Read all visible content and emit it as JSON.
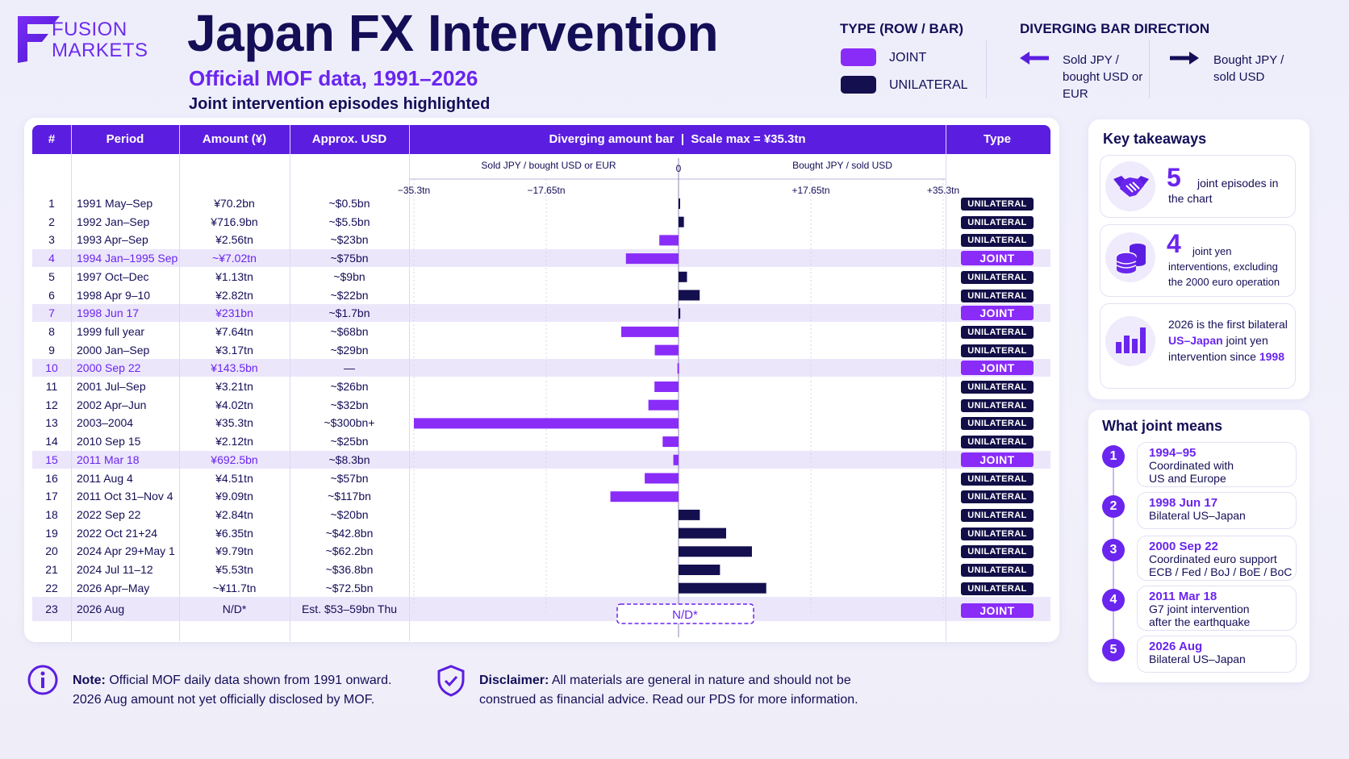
{
  "brand": {
    "line1": "FUSION",
    "line2": "MARKETS"
  },
  "title": "Japan FX Intervention",
  "subtitle": "Official MOF data, 1991–2026",
  "subnote": "Joint intervention episodes highlighted",
  "legend_type": {
    "title": "TYPE (ROW / BAR)",
    "joint": "JOINT",
    "unilateral": "UNILATERAL"
  },
  "legend_direction": {
    "title": "DIVERGING BAR DIRECTION",
    "sold": "Sold JPY / bought USD or EUR",
    "bought": "Bought JPY / sold USD"
  },
  "colors": {
    "joint": "#8a2cf8",
    "unilateral": "#140f4e",
    "accent": "#6a25ee",
    "header": "#5b1ee0"
  },
  "table": {
    "headers": {
      "num": "#",
      "period": "Period",
      "amount": "Amount (¥)",
      "usd": "Approx. USD",
      "bar": "Diverging amount bar  |  Scale max = ¥35.3tn",
      "type": "Type"
    },
    "axis_left_label": "Sold JPY / bought USD or EUR",
    "axis_right_label": "Bought JPY / sold USD",
    "axis_zero": "0",
    "ticks": [
      "−35.3tn",
      "−17.65tn",
      "+17.65tn",
      "+35.3tn"
    ],
    "nd_box": "N/D*"
  },
  "chart_data": {
    "type": "bar",
    "orientation": "horizontal-diverging",
    "title": "Diverging amount bar",
    "scale_note": "Scale max = ¥35.3tn",
    "xlim": [
      -35.3,
      35.3
    ],
    "x_unit": "¥ trillion",
    "rows": [
      {
        "n": "1",
        "period": "1991 May–Sep",
        "amount": "¥70.2bn",
        "usd": "~$0.5bn",
        "type": "UNILATERAL",
        "value": 0.0702
      },
      {
        "n": "2",
        "period": "1992 Jan–Sep",
        "amount": "¥716.9bn",
        "usd": "~$5.5bn",
        "type": "UNILATERAL",
        "value": 0.7169
      },
      {
        "n": "3",
        "period": "1993 Apr–Sep",
        "amount": "¥2.56tn",
        "usd": "~$23bn",
        "type": "UNILATERAL",
        "value": -2.56
      },
      {
        "n": "4",
        "period": "1994 Jan–1995 Sep",
        "amount": "~¥7.02tn",
        "usd": "~$75bn",
        "type": "JOINT",
        "value": -7.02
      },
      {
        "n": "5",
        "period": "1997 Oct–Dec",
        "amount": "¥1.13tn",
        "usd": "~$9bn",
        "type": "UNILATERAL",
        "value": 1.13
      },
      {
        "n": "6",
        "period": "1998 Apr 9–10",
        "amount": "¥2.82tn",
        "usd": "~$22bn",
        "type": "UNILATERAL",
        "value": 2.82
      },
      {
        "n": "7",
        "period": "1998 Jun 17",
        "amount": "¥231bn",
        "usd": "~$1.7bn",
        "type": "JOINT",
        "value": 0.231
      },
      {
        "n": "8",
        "period": "1999 full year",
        "amount": "¥7.64tn",
        "usd": "~$68bn",
        "type": "UNILATERAL",
        "value": -7.64
      },
      {
        "n": "9",
        "period": "2000 Jan–Sep",
        "amount": "¥3.17tn",
        "usd": "~$29bn",
        "type": "UNILATERAL",
        "value": -3.17
      },
      {
        "n": "10",
        "period": "2000 Sep 22",
        "amount": "¥143.5bn",
        "usd": "—",
        "type": "JOINT",
        "value": -0.1435
      },
      {
        "n": "11",
        "period": "2001 Jul–Sep",
        "amount": "¥3.21tn",
        "usd": "~$26bn",
        "type": "UNILATERAL",
        "value": -3.21
      },
      {
        "n": "12",
        "period": "2002 Apr–Jun",
        "amount": "¥4.02tn",
        "usd": "~$32bn",
        "type": "UNILATERAL",
        "value": -4.02
      },
      {
        "n": "13",
        "period": "2003–2004",
        "amount": "¥35.3tn",
        "usd": "~$300bn+",
        "type": "UNILATERAL",
        "value": -35.3
      },
      {
        "n": "14",
        "period": "2010 Sep 15",
        "amount": "¥2.12tn",
        "usd": "~$25bn",
        "type": "UNILATERAL",
        "value": -2.12
      },
      {
        "n": "15",
        "period": "2011 Mar 18",
        "amount": "¥692.5bn",
        "usd": "~$8.3bn",
        "type": "JOINT",
        "value": -0.6925
      },
      {
        "n": "16",
        "period": "2011 Aug 4",
        "amount": "¥4.51tn",
        "usd": "~$57bn",
        "type": "UNILATERAL",
        "value": -4.51
      },
      {
        "n": "17",
        "period": "2011 Oct 31–Nov 4",
        "amount": "¥9.09tn",
        "usd": "~$117bn",
        "type": "UNILATERAL",
        "value": -9.09
      },
      {
        "n": "18",
        "period": "2022 Sep 22",
        "amount": "¥2.84tn",
        "usd": "~$20bn",
        "type": "UNILATERAL",
        "value": 2.84
      },
      {
        "n": "19",
        "period": "2022 Oct 21+24",
        "amount": "¥6.35tn",
        "usd": "~$42.8bn",
        "type": "UNILATERAL",
        "value": 6.35
      },
      {
        "n": "20",
        "period": "2024 Apr 29+May 1",
        "amount": "¥9.79tn",
        "usd": "~$62.2bn",
        "type": "UNILATERAL",
        "value": 9.79
      },
      {
        "n": "21",
        "period": "2024 Jul 11–12",
        "amount": "¥5.53tn",
        "usd": "~$36.8bn",
        "type": "UNILATERAL",
        "value": 5.53
      },
      {
        "n": "22",
        "period": "2026 Apr–May",
        "amount": "~¥11.7tn",
        "usd": "~$72.5bn",
        "type": "UNILATERAL",
        "value": 11.7
      },
      {
        "n": "23",
        "period": "2026 Aug",
        "amount": "N/D*",
        "usd": "Est. $53–59bn Thu",
        "type": "JOINT",
        "value": null
      }
    ]
  },
  "takeaways": {
    "title": "Key takeaways",
    "items": [
      {
        "num": "5",
        "text": "joint episodes in the chart",
        "icon": "handshake-icon"
      },
      {
        "num": "4",
        "text": "joint yen interventions, excluding the 2000 euro operation",
        "icon": "coins-icon"
      },
      {
        "pre": "2026 is the first bilateral ",
        "hl1": "US–Japan",
        "mid": " joint yen intervention since ",
        "hl2": "1998",
        "icon": "bar-chart-icon"
      }
    ]
  },
  "joint_means": {
    "title": "What joint means",
    "items": [
      {
        "num": "1",
        "date": "1994–95",
        "line1": "Coordinated with",
        "line2": "US and Europe"
      },
      {
        "num": "2",
        "date": "1998 Jun 17",
        "line1": "Bilateral US–Japan",
        "line2": ""
      },
      {
        "num": "3",
        "date": "2000 Sep 22",
        "line1": "Coordinated euro support",
        "line2": "ECB / Fed / BoJ / BoE / BoC"
      },
      {
        "num": "4",
        "date": "2011 Mar 18",
        "line1": "G7 joint intervention",
        "line2": "after the earthquake"
      },
      {
        "num": "5",
        "date": "2026 Aug",
        "line1": "Bilateral US–Japan",
        "line2": ""
      }
    ]
  },
  "footer": {
    "note_label": "Note:",
    "note_line1": " Official MOF daily data shown from 1991 onward.",
    "note_line2": "2026 Aug amount not yet officially disclosed by MOF.",
    "disclaimer_label": "Disclaimer:",
    "disclaimer_line1": " All materials are general in nature and should not be",
    "disclaimer_line2": "construed as financial advice. Read our PDS for more information."
  }
}
